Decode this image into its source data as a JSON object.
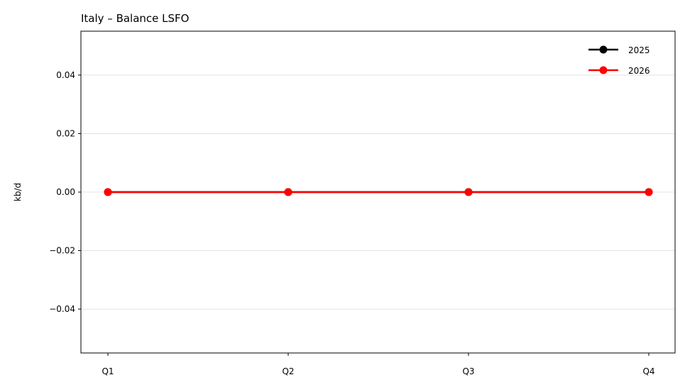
{
  "chart_data": {
    "type": "line",
    "title": "Italy – Balance LSFO",
    "xlabel": "",
    "ylabel": "kb/d",
    "categories": [
      "Q1",
      "Q2",
      "Q3",
      "Q4"
    ],
    "series": [
      {
        "name": "2025",
        "values": [
          0,
          0,
          0,
          0
        ],
        "color": "#000000"
      },
      {
        "name": "2026",
        "values": [
          0,
          0,
          0,
          0
        ],
        "color": "#ff0000"
      }
    ],
    "ylim": [
      -0.055,
      0.055
    ],
    "yticks": [
      -0.04,
      -0.02,
      0.0,
      0.02,
      0.04
    ],
    "ytick_labels": [
      "−0.04",
      "−0.02",
      "0.00",
      "0.02",
      "0.04"
    ],
    "grid": "horizontal",
    "legend_position": "top-right"
  }
}
